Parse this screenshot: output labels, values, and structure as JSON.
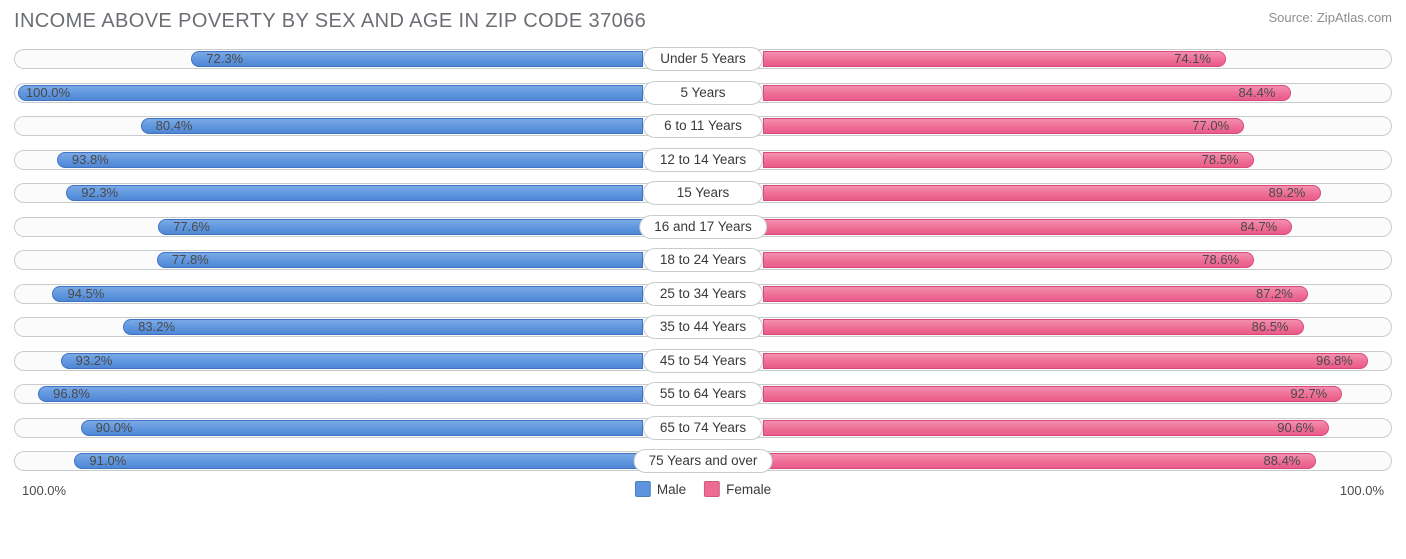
{
  "title": "INCOME ABOVE POVERTY BY SEX AND AGE IN ZIP CODE 37066",
  "source": "Source: ZipAtlas.com",
  "axis": {
    "left": "100.0%",
    "right": "100.0%"
  },
  "legend": {
    "male": {
      "label": "Male",
      "color": "#5d94dd"
    },
    "female": {
      "label": "Female",
      "color": "#ee6b95"
    }
  },
  "chart": {
    "type": "diverging-bar",
    "male_color": "#5d94dd",
    "female_color": "#ee6b95",
    "track_border": "#c9cccf",
    "background": "#ffffff",
    "bar_max_pct": 100.0,
    "rows": [
      {
        "category": "Under 5 Years",
        "male": 72.3,
        "female": 74.1
      },
      {
        "category": "5 Years",
        "male": 100.0,
        "female": 84.4
      },
      {
        "category": "6 to 11 Years",
        "male": 80.4,
        "female": 77.0
      },
      {
        "category": "12 to 14 Years",
        "male": 93.8,
        "female": 78.5
      },
      {
        "category": "15 Years",
        "male": 92.3,
        "female": 89.2
      },
      {
        "category": "16 and 17 Years",
        "male": 77.6,
        "female": 84.7
      },
      {
        "category": "18 to 24 Years",
        "male": 77.8,
        "female": 78.6
      },
      {
        "category": "25 to 34 Years",
        "male": 94.5,
        "female": 87.2
      },
      {
        "category": "35 to 44 Years",
        "male": 83.2,
        "female": 86.5
      },
      {
        "category": "45 to 54 Years",
        "male": 93.2,
        "female": 96.8
      },
      {
        "category": "55 to 64 Years",
        "male": 96.8,
        "female": 92.7
      },
      {
        "category": "65 to 74 Years",
        "male": 90.0,
        "female": 90.6
      },
      {
        "category": "75 Years and over",
        "male": 91.0,
        "female": 88.4
      }
    ]
  }
}
